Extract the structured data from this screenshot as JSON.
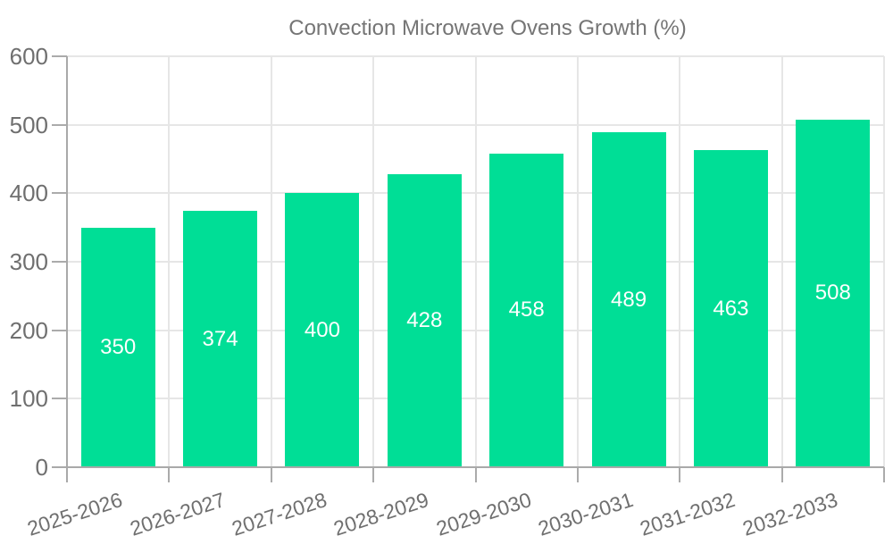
{
  "legend": {
    "label": "Convection Microwave Ovens Growth (%)"
  },
  "chart_data": {
    "type": "bar",
    "title": "Convection Microwave Ovens Growth (%)",
    "categories": [
      "2025-2026",
      "2026-2027",
      "2027-2028",
      "2028-2029",
      "2029-2030",
      "2030-2031",
      "2031-2032",
      "2032-2033"
    ],
    "values": [
      350,
      374,
      400,
      428,
      458,
      489,
      463,
      508
    ],
    "xlabel": "",
    "ylabel": "",
    "ylim": [
      0,
      600
    ],
    "ytick_step": 100,
    "yticks": [
      0,
      100,
      200,
      300,
      400,
      500,
      600
    ],
    "grid": true,
    "legend_position": "top-center",
    "bar_color": "#00de96",
    "value_label_color": "#ffffff",
    "axis_text_color": "#6f6f6f",
    "legend_text_color": "#757575",
    "gridline_color": "#e6e6e6",
    "axis_line_color": "#a9a9a9"
  }
}
